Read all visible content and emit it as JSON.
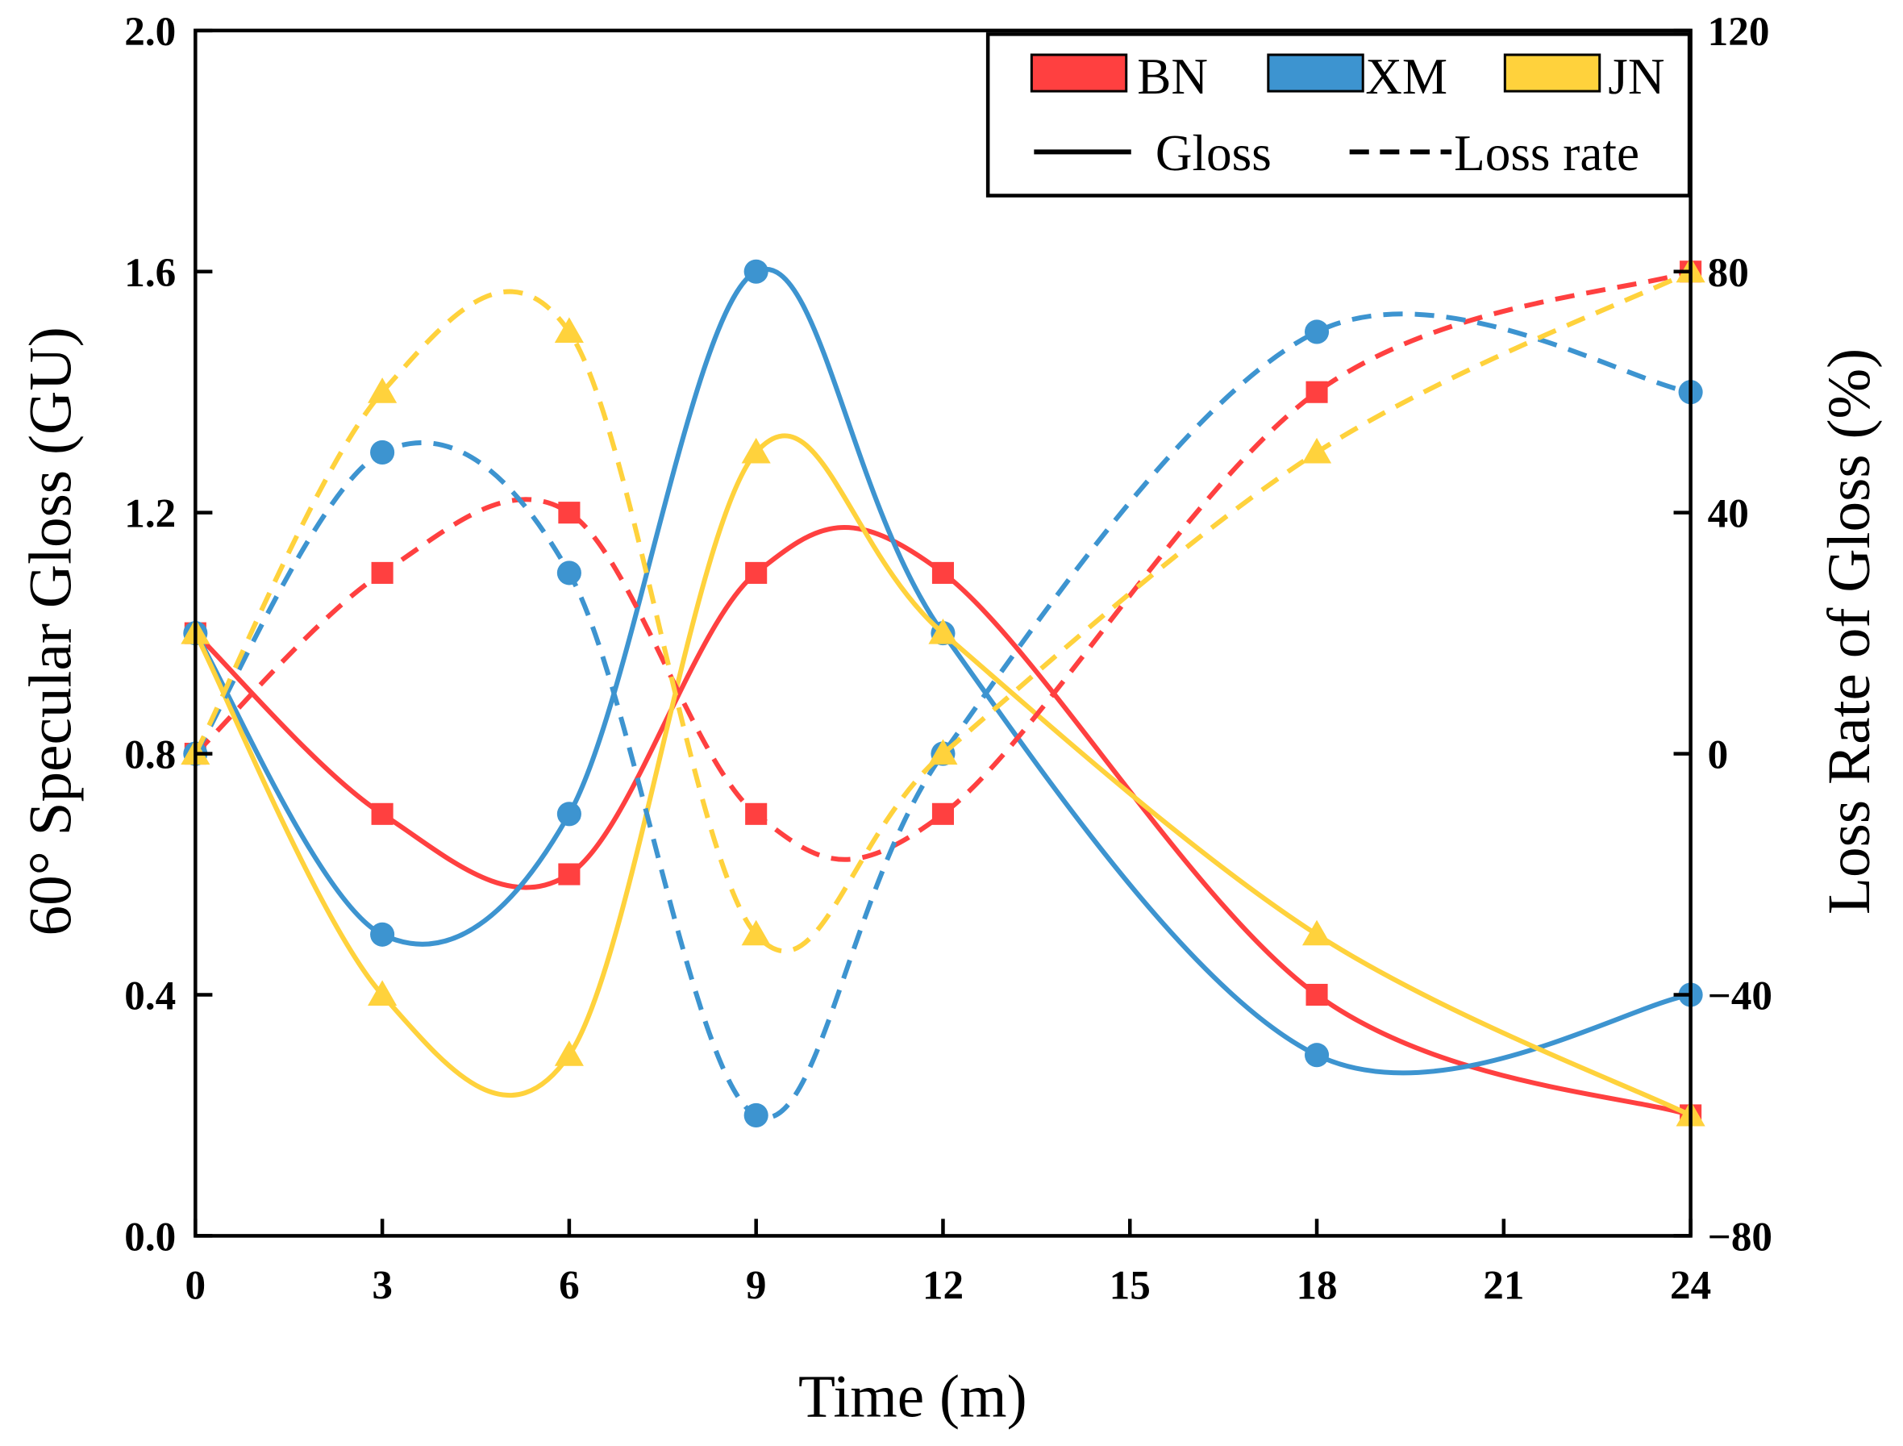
{
  "chart_data": {
    "type": "line",
    "title": "",
    "xlabel": "Time (m)",
    "ylabel": "60° Specular Gloss (GU)",
    "y2label": "Loss Rate of Gloss (%)",
    "x": [
      0,
      3,
      6,
      9,
      12,
      18,
      24
    ],
    "xticks": [
      "0",
      "3",
      "6",
      "9",
      "12",
      "15",
      "18",
      "21",
      "24"
    ],
    "xlim": [
      0,
      24
    ],
    "ylim": [
      0,
      2.0
    ],
    "yticks": [
      "0.0",
      "0.4",
      "0.8",
      "1.2",
      "1.6",
      "2.0"
    ],
    "y2lim": [
      -80,
      120
    ],
    "y2ticks": [
      "−80",
      "−40",
      "0",
      "40",
      "80",
      "120"
    ],
    "grid": false,
    "legend_position": "top-right",
    "legend": {
      "bn": "BN",
      "xm": "XM",
      "jn": "JN",
      "gloss": "Gloss",
      "loss": "Loss rate"
    },
    "series": [
      {
        "name": "BN",
        "kind": "Gloss",
        "axis": "left",
        "color": "#ff4040",
        "marker": "square",
        "values": [
          1.0,
          0.7,
          0.6,
          1.1,
          1.1,
          0.4,
          0.2
        ]
      },
      {
        "name": "XM",
        "kind": "Gloss",
        "axis": "left",
        "color": "#3d94d0",
        "marker": "circle",
        "values": [
          1.0,
          0.5,
          0.7,
          1.6,
          1.0,
          0.3,
          0.4
        ]
      },
      {
        "name": "JN",
        "kind": "Gloss",
        "axis": "left",
        "color": "#ffd23c",
        "marker": "triangle",
        "values": [
          1.0,
          0.4,
          0.3,
          1.3,
          1.0,
          0.5,
          0.2
        ]
      },
      {
        "name": "BN",
        "kind": "Loss rate",
        "axis": "right",
        "color": "#ff4040",
        "marker": "square",
        "values": [
          0,
          30,
          40,
          -10,
          -10,
          60,
          80
        ]
      },
      {
        "name": "XM",
        "kind": "Loss rate",
        "axis": "right",
        "color": "#3d94d0",
        "marker": "circle",
        "values": [
          0,
          50,
          30,
          -60,
          0,
          70,
          60
        ]
      },
      {
        "name": "JN",
        "kind": "Loss rate",
        "axis": "right",
        "color": "#ffd23c",
        "marker": "triangle",
        "values": [
          0,
          60,
          70,
          -30,
          0,
          50,
          80
        ]
      }
    ]
  }
}
